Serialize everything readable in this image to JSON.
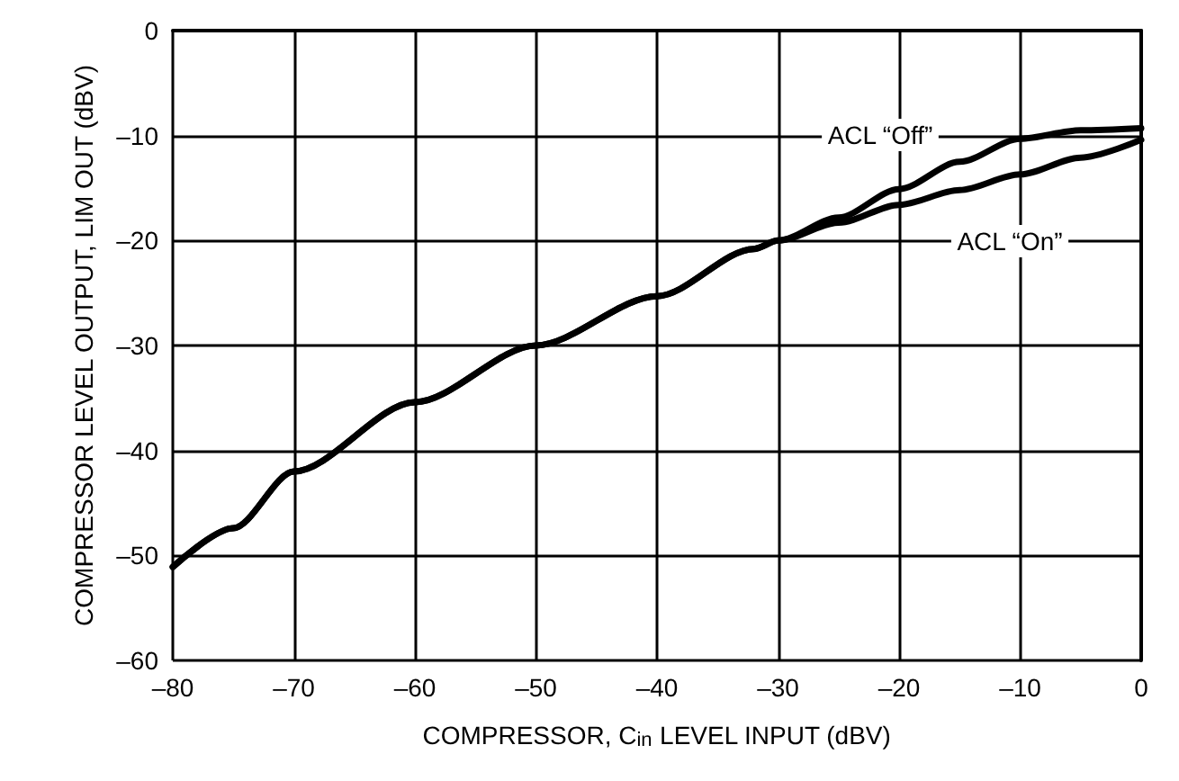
{
  "chart_data": {
    "type": "line",
    "xlabel": "COMPRESSOR, C$_{in}$ LEVEL INPUT (dBV)",
    "ylabel": "COMPRESSOR LEVEL OUTPUT, LIM OUT (dBV)",
    "xlim": [
      -80,
      0
    ],
    "xticks": [
      {
        "value": -80,
        "label": "–80"
      },
      {
        "value": -70,
        "label": "–70"
      },
      {
        "value": -60,
        "label": "–60"
      },
      {
        "value": -50,
        "label": "–50"
      },
      {
        "value": -40,
        "label": "–40"
      },
      {
        "value": -30,
        "label": "–30"
      },
      {
        "value": -20,
        "label": "–20"
      },
      {
        "value": -10,
        "label": "–10"
      },
      0
    ],
    "ylim": [
      -60,
      0
    ],
    "yticks": [
      {
        "value": -60,
        "label": "–60"
      },
      {
        "value": -50,
        "label": "–50"
      },
      {
        "value": -40,
        "label": "–40"
      },
      {
        "value": -30,
        "label": "–30"
      },
      {
        "value": -20,
        "label": "–20"
      },
      {
        "value": -10,
        "label": "–10"
      },
      0
    ],
    "grid": true,
    "marker": "none",
    "line_style": "solid",
    "series": [
      {
        "color": "#000000",
        "x": [
          -80,
          -75,
          -70,
          -60,
          -50,
          -40,
          -32,
          -30,
          -25,
          -20,
          -15,
          -10,
          -5,
          0
        ],
        "values": [
          -51.1,
          -47.4,
          -42,
          -35.4,
          -30,
          -25.3,
          -20.8,
          -20,
          -17.8,
          -15.1,
          -12.5,
          -10.3,
          -9.5,
          -9.3
        ]
      },
      {
        "color": "#000000",
        "x": [
          -80,
          -75,
          -70,
          -60,
          -50,
          -40,
          -32,
          -30,
          -25,
          -20,
          -15,
          -10,
          -5,
          0
        ],
        "values": [
          -51.1,
          -47.4,
          -42,
          -35.4,
          -30,
          -25.3,
          -20.8,
          -20,
          -18.3,
          -16.6,
          -15.2,
          -13.7,
          -12.1,
          -10.4
        ]
      }
    ],
    "annotations": [
      "ACL “Off”",
      "ACL “On”"
    ]
  }
}
